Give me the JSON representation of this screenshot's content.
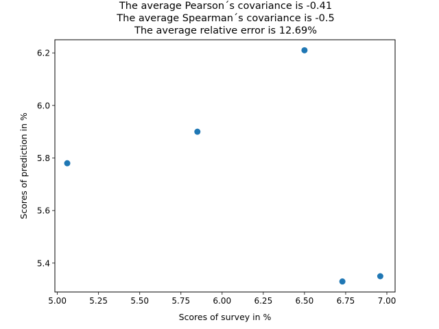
{
  "chart_data": {
    "type": "scatter",
    "title_lines": [
      "The average Pearson´s covariance is -0.41",
      "The average Spearman´s covariance is -0.5",
      "The average relative error is 12.69%"
    ],
    "xlabel": "Scores of survey in %",
    "ylabel": "Scores of prediction in %",
    "xlim": [
      4.985,
      7.05
    ],
    "ylim": [
      5.29,
      6.25
    ],
    "x_ticks": [
      5.0,
      5.25,
      5.5,
      5.75,
      6.0,
      6.25,
      6.5,
      6.75,
      7.0
    ],
    "x_tick_labels": [
      "5.00",
      "5.25",
      "5.50",
      "5.75",
      "6.00",
      "6.25",
      "6.50",
      "6.75",
      "7.00"
    ],
    "y_ticks": [
      5.4,
      5.6,
      5.8,
      6.0,
      6.2
    ],
    "y_tick_labels": [
      "5.4",
      "5.6",
      "5.8",
      "6.0",
      "6.2"
    ],
    "grid": false,
    "marker_color": "#1f77b4",
    "points": [
      {
        "x": 5.06,
        "y": 5.78
      },
      {
        "x": 5.85,
        "y": 5.9
      },
      {
        "x": 6.5,
        "y": 6.21
      },
      {
        "x": 6.73,
        "y": 5.33
      },
      {
        "x": 6.96,
        "y": 5.35
      }
    ]
  }
}
